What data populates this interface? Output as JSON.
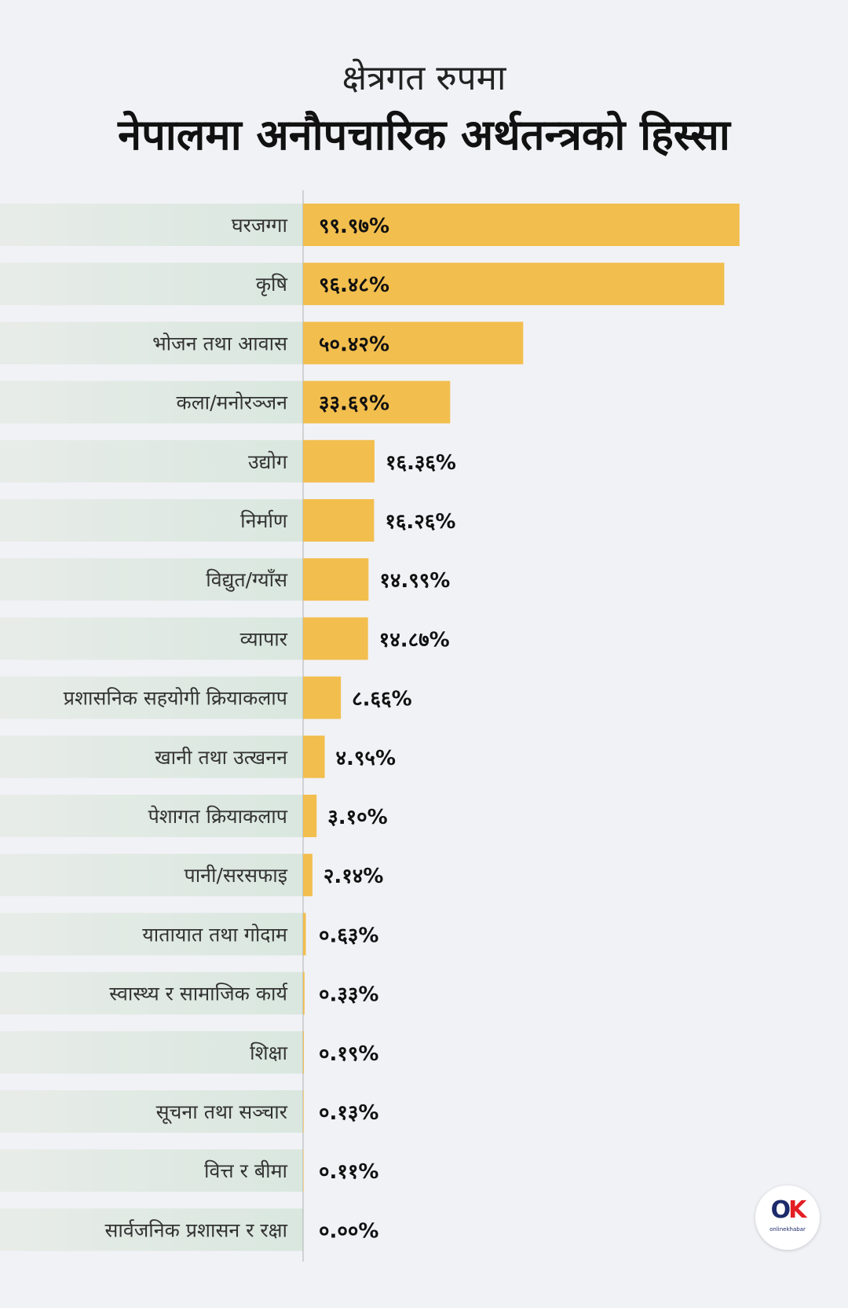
{
  "header": {
    "subtitle": "क्षेत्रगत रुपमा",
    "title": "नेपालमा अनौपचारिक अर्थतन्त्रको हिस्सा"
  },
  "logo": {
    "text": "onlinekhabar",
    "mark_o": "O",
    "mark_k": "K"
  },
  "colors": {
    "bar": "#f2be4e",
    "label_band": "#dde8e2",
    "background": "#f1f2f6",
    "axis": "#b0b0b0"
  },
  "chart_data": {
    "type": "bar",
    "orientation": "horizontal",
    "xlim": [
      0,
      100
    ],
    "categories": [
      "घरजग्गा",
      "कृषि",
      "भोजन तथा आवास",
      "कला/मनोरञ्जन",
      "उद्योग",
      "निर्माण",
      "विद्युत/ग्याँस",
      "व्यापार",
      "प्रशासनिक सहयोगी क्रियाकलाप",
      "खानी तथा उत्खनन",
      "पेशागत क्रियाकलाप",
      "पानी/सरसफाइ",
      "यातायात तथा गोदाम",
      "स्वास्थ्य र सामाजिक कार्य",
      "शिक्षा",
      "सूचना तथा सञ्चार",
      "वित्त र बीमा",
      "सार्वजनिक प्रशासन र रक्षा"
    ],
    "values": [
      99.97,
      96.48,
      50.42,
      33.69,
      16.36,
      16.26,
      14.99,
      14.87,
      8.66,
      4.95,
      3.1,
      2.14,
      0.63,
      0.33,
      0.19,
      0.13,
      0.11,
      0.0
    ],
    "data_labels": [
      "९९.९७%",
      "९६.४८%",
      "५०.४२%",
      "३३.६९%",
      "१६.३६%",
      "१६.२६%",
      "१४.९९%",
      "१४.८७%",
      "८.६६%",
      "४.९५%",
      "३.१०%",
      "२.१४%",
      "०.६३%",
      "०.३३%",
      "०.१९%",
      "०.१३%",
      "०.११%",
      "०.००%"
    ]
  }
}
